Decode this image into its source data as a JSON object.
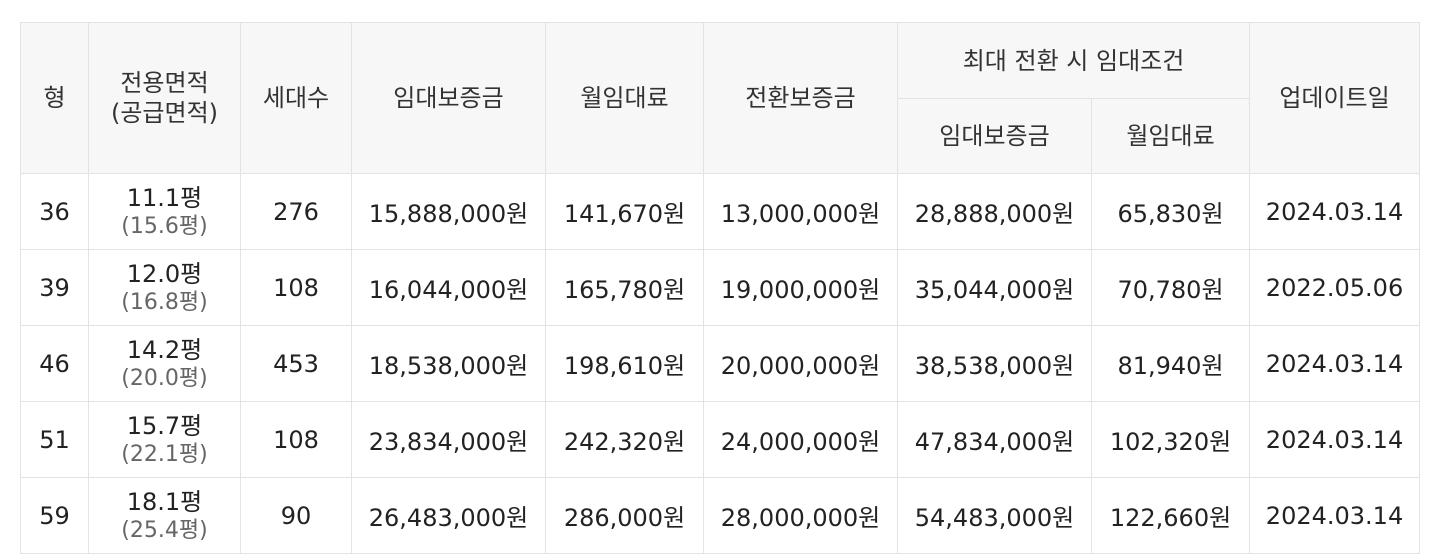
{
  "headers": {
    "type": "형",
    "area_line1": "전용면적",
    "area_line2": "(공급면적)",
    "households": "세대수",
    "deposit": "임대보증금",
    "monthly_rent": "월임대료",
    "conversion_deposit": "전환보증금",
    "max_conversion_group": "최대 전환 시 임대조건",
    "max_deposit": "임대보증금",
    "max_monthly_rent": "월임대료",
    "updated": "업데이트일"
  },
  "rows": [
    {
      "type": "36",
      "area": "11.1평",
      "supply_area": "(15.6평)",
      "households": "276",
      "deposit": "15,888,000원",
      "monthly_rent": "141,670원",
      "conversion_deposit": "13,000,000원",
      "max_deposit": "28,888,000원",
      "max_monthly_rent": "65,830원",
      "updated": "2024.03.14"
    },
    {
      "type": "39",
      "area": "12.0평",
      "supply_area": "(16.8평)",
      "households": "108",
      "deposit": "16,044,000원",
      "monthly_rent": "165,780원",
      "conversion_deposit": "19,000,000원",
      "max_deposit": "35,044,000원",
      "max_monthly_rent": "70,780원",
      "updated": "2022.05.06"
    },
    {
      "type": "46",
      "area": "14.2평",
      "supply_area": "(20.0평)",
      "households": "453",
      "deposit": "18,538,000원",
      "monthly_rent": "198,610원",
      "conversion_deposit": "20,000,000원",
      "max_deposit": "38,538,000원",
      "max_monthly_rent": "81,940원",
      "updated": "2024.03.14"
    },
    {
      "type": "51",
      "area": "15.7평",
      "supply_area": "(22.1평)",
      "households": "108",
      "deposit": "23,834,000원",
      "monthly_rent": "242,320원",
      "conversion_deposit": "24,000,000원",
      "max_deposit": "47,834,000원",
      "max_monthly_rent": "102,320원",
      "updated": "2024.03.14"
    },
    {
      "type": "59",
      "area": "18.1평",
      "supply_area": "(25.4평)",
      "households": "90",
      "deposit": "26,483,000원",
      "monthly_rent": "286,000원",
      "conversion_deposit": "28,000,000원",
      "max_deposit": "54,483,000원",
      "max_monthly_rent": "122,660원",
      "updated": "2024.03.14"
    }
  ]
}
